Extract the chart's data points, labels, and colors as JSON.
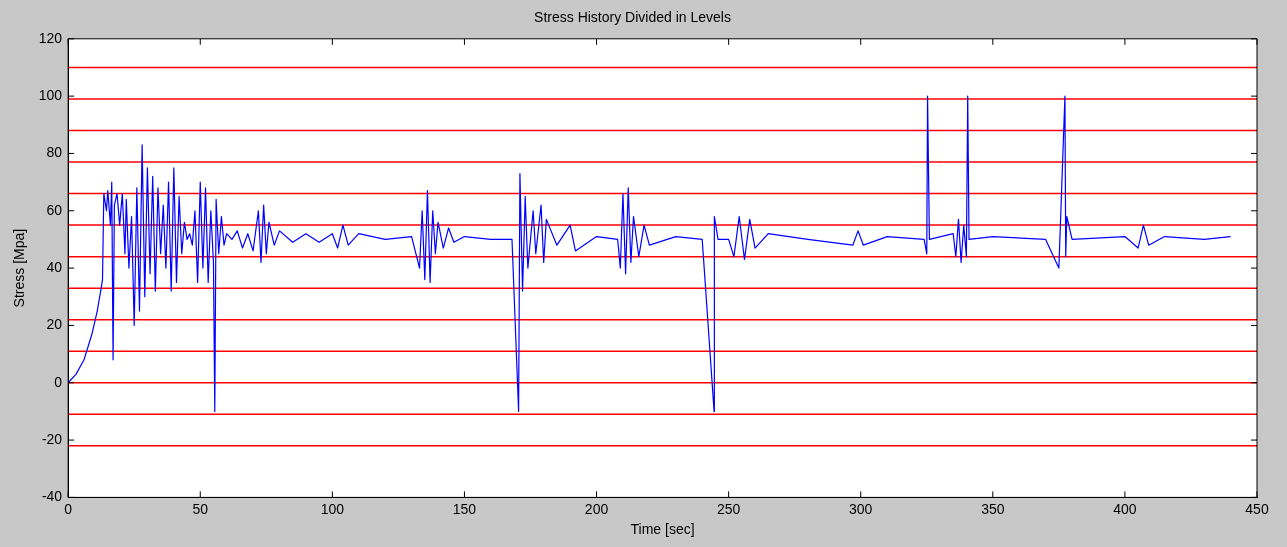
{
  "chart_data": {
    "type": "line",
    "title": "Stress History Divided in Levels",
    "xlabel": "Time [sec]",
    "ylabel": "Stress [Mpa]",
    "x": [
      0,
      3,
      6,
      9,
      11,
      12.5,
      13,
      13.5,
      14.5,
      15,
      16,
      16.5,
      17,
      17.5,
      18.5,
      19.5,
      20.5,
      21.5,
      22,
      23,
      24,
      25,
      26,
      27,
      28,
      29,
      30,
      31,
      32,
      33,
      34,
      35,
      36,
      37,
      38,
      39,
      40,
      41,
      42,
      43,
      44,
      45,
      46,
      47,
      48,
      49,
      50,
      51,
      52,
      53,
      54,
      55,
      55.5,
      56,
      57,
      58,
      59,
      60,
      62,
      64,
      66,
      68,
      70,
      72,
      73,
      74,
      75,
      76,
      78,
      80,
      85,
      90,
      95,
      100,
      102,
      104,
      106,
      110,
      120,
      130,
      133,
      134,
      135,
      136,
      137,
      138,
      139,
      140,
      142,
      144,
      146,
      150,
      160,
      168,
      170.5,
      171,
      172,
      173,
      174,
      176,
      177,
      179,
      180,
      181,
      185,
      190,
      192,
      200,
      208,
      209,
      210,
      211,
      212,
      213,
      214,
      216,
      218,
      220,
      230,
      240,
      244.5,
      244.6,
      246,
      250,
      252,
      254,
      256,
      258,
      260,
      265,
      280,
      297,
      299,
      301,
      310,
      324,
      325,
      325.3,
      326,
      335,
      336,
      337,
      338,
      339,
      340,
      340.5,
      341,
      350,
      370,
      375,
      377.3,
      377.6,
      378,
      380,
      400,
      405,
      407,
      409,
      415,
      430,
      440
    ],
    "series": [
      {
        "color": "#0000ff",
        "values": [
          0,
          3,
          8,
          17,
          25,
          33,
          36,
          66,
          60,
          67,
          55,
          70,
          8,
          62,
          66,
          55,
          66,
          45,
          64,
          40,
          58,
          20,
          68,
          25,
          83,
          30,
          75,
          38,
          72,
          32,
          68,
          45,
          62,
          40,
          70,
          32,
          75,
          35,
          65,
          45,
          56,
          50,
          52,
          48,
          60,
          35,
          70,
          40,
          68,
          35,
          60,
          42,
          -10,
          64,
          45,
          58,
          48,
          52,
          50,
          53,
          47,
          52,
          46,
          60,
          42,
          62,
          45,
          56,
          48,
          53,
          49,
          52,
          49,
          52,
          47,
          55,
          48,
          52,
          50,
          51,
          40,
          60,
          36,
          67,
          35,
          60,
          45,
          56,
          47,
          54,
          49,
          51,
          50,
          50,
          -10,
          73,
          32,
          65,
          40,
          60,
          45,
          62,
          42,
          57,
          48,
          55,
          46,
          51,
          50,
          40,
          66,
          38,
          68,
          42,
          58,
          44,
          55,
          48,
          51,
          50,
          -10,
          58,
          50,
          50,
          44,
          58,
          43,
          57,
          47,
          52,
          50,
          48,
          53,
          48,
          51,
          50,
          45,
          100,
          50,
          52,
          44,
          57,
          42,
          55,
          44,
          100,
          50,
          51,
          50,
          40,
          100,
          44,
          58,
          50,
          51,
          47,
          55,
          48,
          51,
          50,
          51
        ]
      }
    ],
    "xlim": [
      0,
      450
    ],
    "xticks": [
      0,
      50,
      100,
      150,
      200,
      250,
      300,
      350,
      400,
      450
    ],
    "ylim": [
      -40,
      120
    ],
    "yticks": [
      -40,
      -20,
      0,
      20,
      40,
      60,
      80,
      100,
      120
    ],
    "ref_lines": [
      {
        "axis": "y",
        "value": -22,
        "color": "#ff0000"
      },
      {
        "axis": "y",
        "value": -11,
        "color": "#ff0000"
      },
      {
        "axis": "y",
        "value": 0,
        "color": "#ff0000"
      },
      {
        "axis": "y",
        "value": 11,
        "color": "#ff0000"
      },
      {
        "axis": "y",
        "value": 22,
        "color": "#ff0000"
      },
      {
        "axis": "y",
        "value": 33,
        "color": "#ff0000"
      },
      {
        "axis": "y",
        "value": 44,
        "color": "#ff0000"
      },
      {
        "axis": "y",
        "value": 55,
        "color": "#ff0000"
      },
      {
        "axis": "y",
        "value": 66,
        "color": "#ff0000"
      },
      {
        "axis": "y",
        "value": 77,
        "color": "#ff0000"
      },
      {
        "axis": "y",
        "value": 88,
        "color": "#ff0000"
      },
      {
        "axis": "y",
        "value": 99,
        "color": "#ff0000"
      },
      {
        "axis": "y",
        "value": 110,
        "color": "#ff0000"
      }
    ],
    "marker": "none",
    "line_style": "solid",
    "legend": false,
    "grid": false
  }
}
